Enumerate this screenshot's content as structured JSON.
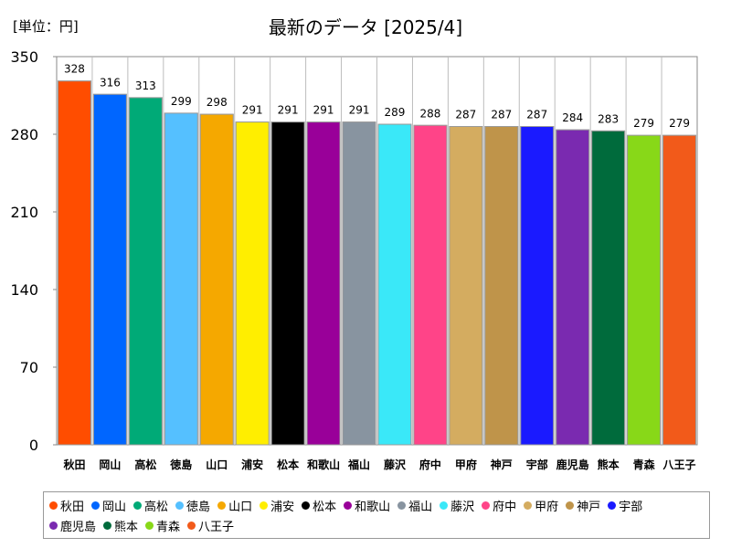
{
  "unit_label": "[単位：円]",
  "title": "最新のデータ [2025/4]",
  "chart_data": {
    "type": "bar",
    "categories": [
      "秋田",
      "岡山",
      "高松",
      "徳島",
      "山口",
      "浦安",
      "松本",
      "和歌山",
      "福山",
      "藤沢",
      "府中",
      "甲府",
      "神戸",
      "宇部",
      "鹿児島",
      "熊本",
      "青森",
      "八王子"
    ],
    "values": [
      328,
      316,
      313,
      299,
      298,
      291,
      291,
      291,
      291,
      289,
      288,
      287,
      287,
      287,
      284,
      283,
      279,
      279
    ],
    "colors": [
      "#ff4d00",
      "#0066ff",
      "#00aa77",
      "#55c0ff",
      "#f5a800",
      "#ffee00",
      "#000000",
      "#990099",
      "#8894a0",
      "#3ae8f8",
      "#ff4488",
      "#d4ac60",
      "#bf944a",
      "#1a1aff",
      "#7a2ab0",
      "#006b3c",
      "#88d818",
      "#f25a1a"
    ],
    "yticks": [
      0,
      70,
      140,
      210,
      280,
      350
    ],
    "ylim": [
      0,
      350
    ],
    "legend_position": "bottom",
    "grid": false
  }
}
